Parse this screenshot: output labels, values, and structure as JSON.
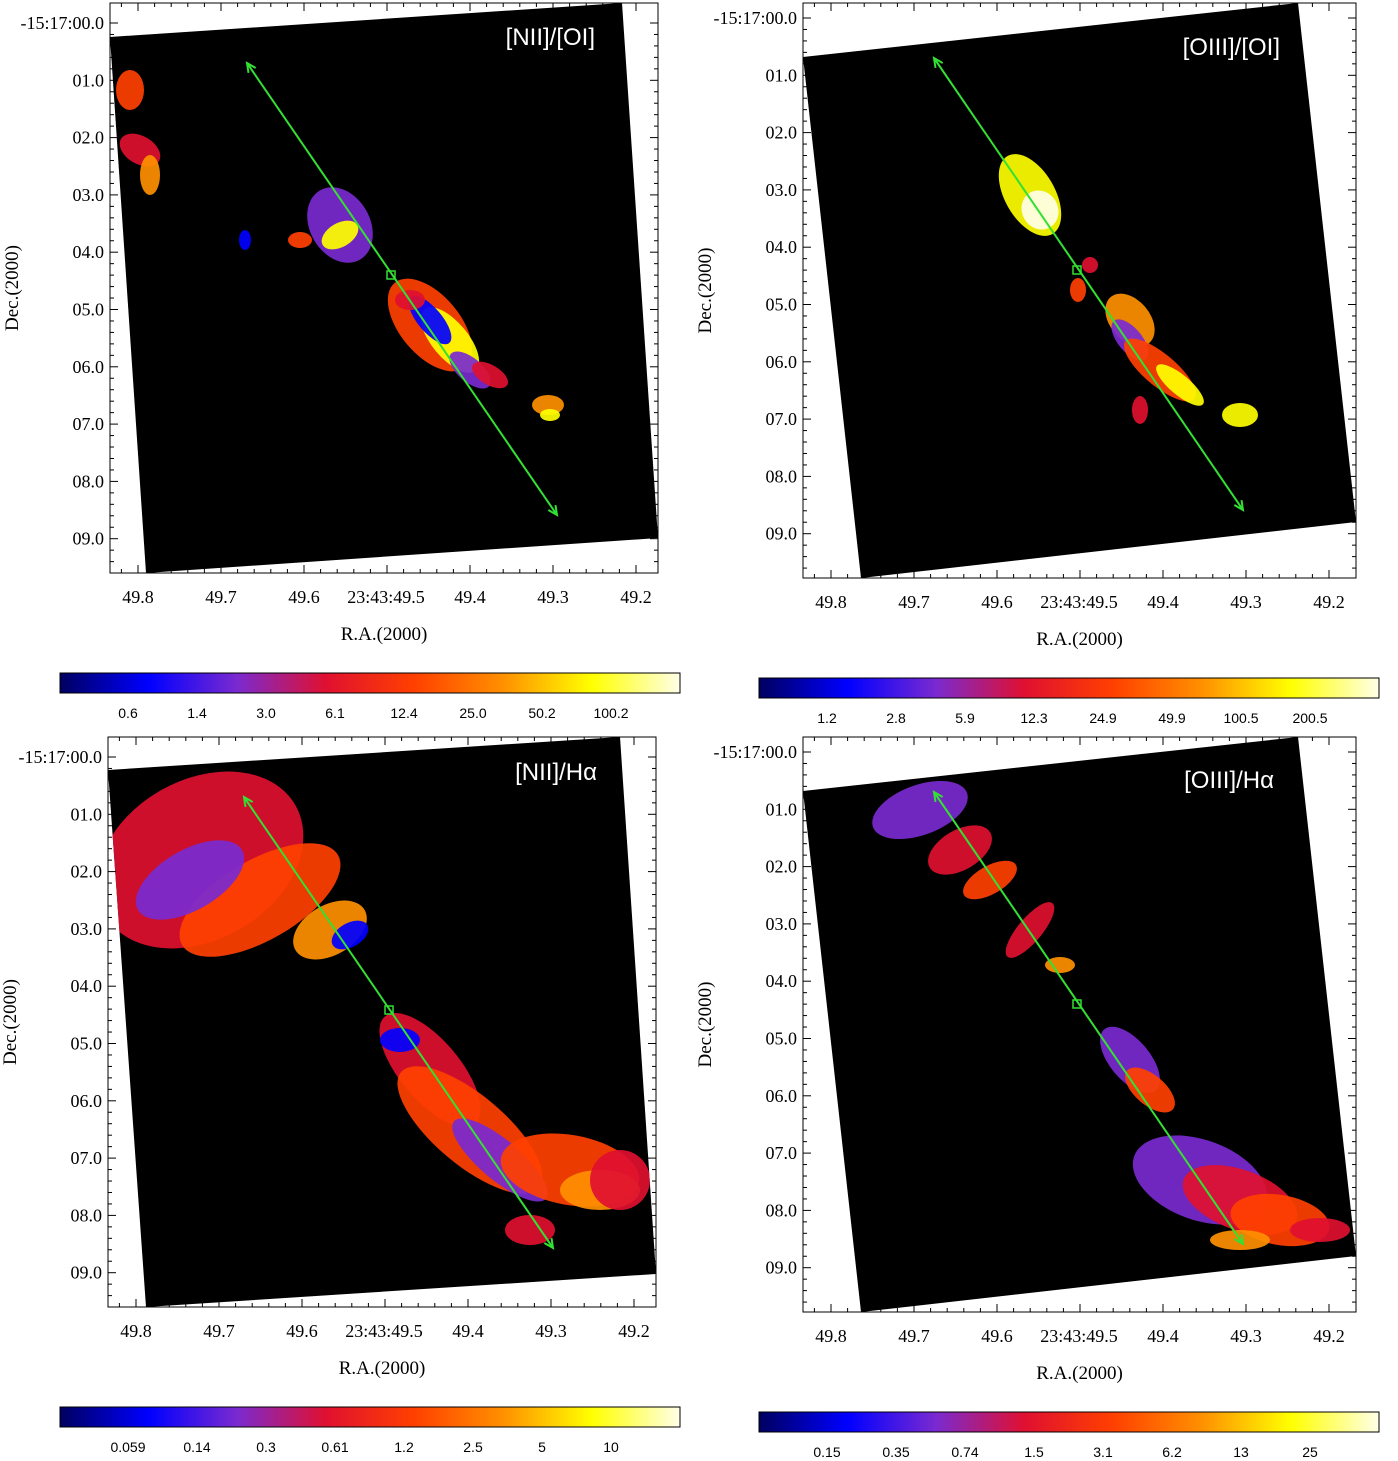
{
  "colors": {
    "frame_bg": "#000000",
    "axis": "#000000",
    "arrow": "#33e033",
    "label": "#ffffff",
    "colormap": [
      "#000060",
      "#0000ff",
      "#7a2ad0",
      "#e01030",
      "#ff4000",
      "#ff9000",
      "#ffff00",
      "#ffffe8"
    ]
  },
  "panels": [
    {
      "label": "[NII]/[OI]",
      "dec_ticks": [
        "-15:17:00.0",
        "01.0",
        "02.0",
        "03.0",
        "04.0",
        "05.0",
        "06.0",
        "07.0",
        "08.0",
        "09.0"
      ],
      "ra_ticks": [
        "49.8",
        "49.7",
        "49.6",
        "23:43:49.5",
        "49.4",
        "49.3",
        "49.2"
      ],
      "xlabel": "R.A.(2000)",
      "ylabel": "Dec.(2000)",
      "colorbar_ticks": [
        "0.6",
        "1.4",
        "3.0",
        "6.1",
        "12.4",
        "25.0",
        "50.2",
        "100.2"
      ]
    },
    {
      "label": "[OIII]/[OI]",
      "dec_ticks": [
        "-15:17:00.0",
        "01.0",
        "02.0",
        "03.0",
        "04.0",
        "05.0",
        "06.0",
        "07.0",
        "08.0",
        "09.0"
      ],
      "ra_ticks": [
        "49.8",
        "49.7",
        "49.6",
        "23:43:49.5",
        "49.4",
        "49.3",
        "49.2"
      ],
      "xlabel": "R.A.(2000)",
      "ylabel": "Dec.(2000)",
      "colorbar_ticks": [
        "1.2",
        "2.8",
        "5.9",
        "12.3",
        "24.9",
        "49.9",
        "100.5",
        "200.5"
      ]
    },
    {
      "label": "[NII]/Hα",
      "dec_ticks": [
        "-15:17:00.0",
        "01.0",
        "02.0",
        "03.0",
        "04.0",
        "05.0",
        "06.0",
        "07.0",
        "08.0",
        "09.0"
      ],
      "ra_ticks": [
        "49.8",
        "49.7",
        "49.6",
        "23:43:49.5",
        "49.4",
        "49.3",
        "49.2"
      ],
      "xlabel": "R.A.(2000)",
      "ylabel": "Dec.(2000)",
      "colorbar_ticks": [
        "0.059",
        "0.14",
        "0.3",
        "0.61",
        "1.2",
        "2.5",
        "5",
        "10"
      ]
    },
    {
      "label": "[OIII]/Hα",
      "dec_ticks": [
        "-15:17:00.0",
        "01.0",
        "02.0",
        "03.0",
        "04.0",
        "05.0",
        "06.0",
        "07.0",
        "08.0",
        "09.0"
      ],
      "ra_ticks": [
        "49.8",
        "49.7",
        "49.6",
        "23:43:49.5",
        "49.4",
        "49.3",
        "49.2"
      ],
      "xlabel": "R.A.(2000)",
      "ylabel": "Dec.(2000)",
      "colorbar_ticks": [
        "0.15",
        "0.35",
        "0.74",
        "1.5",
        "3.1",
        "6.2",
        "13",
        "25"
      ]
    }
  ]
}
